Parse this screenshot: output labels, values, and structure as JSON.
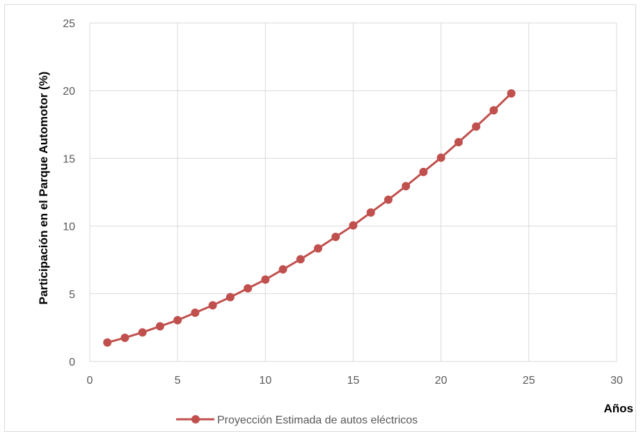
{
  "chart_data": {
    "type": "line",
    "xlabel": "Años",
    "ylabel": "Participación en el Parque Automotor  (%)",
    "xlim": [
      0,
      30
    ],
    "ylim": [
      0,
      25
    ],
    "xticks": [
      0,
      5,
      10,
      15,
      20,
      25,
      30
    ],
    "yticks": [
      0,
      5,
      10,
      15,
      20,
      25
    ],
    "grid": true,
    "legend_position": "bottom",
    "series": [
      {
        "name": "Proyección Estimada de autos eléctricos",
        "color": "#c0504d",
        "marker": "circle",
        "x": [
          1,
          2,
          3,
          4,
          5,
          6,
          7,
          8,
          9,
          10,
          11,
          12,
          13,
          14,
          15,
          16,
          17,
          18,
          19,
          20,
          21,
          22,
          23,
          24
        ],
        "y": [
          1.4,
          1.75,
          2.15,
          2.6,
          3.05,
          3.6,
          4.15,
          4.75,
          5.4,
          6.05,
          6.8,
          7.55,
          8.35,
          9.2,
          10.05,
          11.0,
          11.95,
          12.95,
          14.0,
          15.05,
          16.2,
          17.35,
          18.55,
          19.8
        ]
      }
    ]
  }
}
